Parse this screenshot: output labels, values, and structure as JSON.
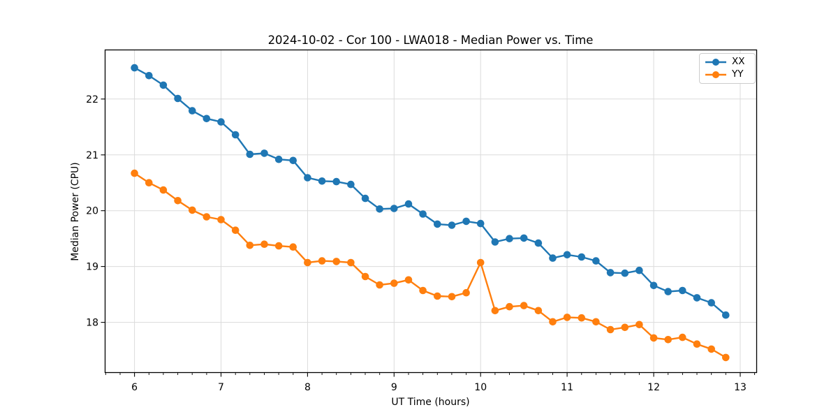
{
  "chart_data": {
    "type": "line",
    "title": "2024-10-02 - Cor 100 - LWA018 - Median Power vs. Time",
    "xlabel": "UT Time (hours)",
    "ylabel": "Median Power (CPU)",
    "x_ticks": [
      6,
      7,
      8,
      9,
      10,
      11,
      12,
      13
    ],
    "y_ticks": [
      18,
      19,
      20,
      21,
      22
    ],
    "xlim": [
      5.66,
      13.19
    ],
    "ylim": [
      17.1,
      22.88
    ],
    "x_minor_step": 0.1667,
    "grid": true,
    "legend_position": "upper right",
    "x": [
      6.0,
      6.167,
      6.333,
      6.5,
      6.667,
      6.833,
      7.0,
      7.167,
      7.333,
      7.5,
      7.667,
      7.833,
      8.0,
      8.167,
      8.333,
      8.5,
      8.667,
      8.833,
      9.0,
      9.167,
      9.333,
      9.5,
      9.667,
      9.833,
      10.0,
      10.167,
      10.333,
      10.5,
      10.667,
      10.833,
      11.0,
      11.167,
      11.333,
      11.5,
      11.667,
      11.833,
      12.0,
      12.167,
      12.333,
      12.5,
      12.667,
      12.833
    ],
    "series": [
      {
        "name": "XX",
        "color": "#1f77b4",
        "marker": "circle",
        "values": [
          22.56,
          22.42,
          22.25,
          22.01,
          21.79,
          21.65,
          21.59,
          21.36,
          21.01,
          21.03,
          20.92,
          20.9,
          20.59,
          20.53,
          20.52,
          20.47,
          20.22,
          20.03,
          20.04,
          20.12,
          19.94,
          19.76,
          19.74,
          19.81,
          19.77,
          19.44,
          19.5,
          19.51,
          19.42,
          19.15,
          19.21,
          19.17,
          19.1,
          18.89,
          18.88,
          18.93,
          18.66,
          18.55,
          18.57,
          18.44,
          18.35,
          18.13
        ]
      },
      {
        "name": "YY",
        "color": "#ff7f0e",
        "marker": "circle",
        "values": [
          20.67,
          20.5,
          20.37,
          20.18,
          20.01,
          19.89,
          19.84,
          19.65,
          19.38,
          19.4,
          19.37,
          19.35,
          19.07,
          19.1,
          19.09,
          19.07,
          18.82,
          18.67,
          18.7,
          18.76,
          18.57,
          18.47,
          18.46,
          18.53,
          19.07,
          18.21,
          18.28,
          18.3,
          18.21,
          18.01,
          18.09,
          18.08,
          18.01,
          17.87,
          17.91,
          17.96,
          17.72,
          17.69,
          17.73,
          17.61,
          17.52,
          17.37
        ]
      }
    ]
  }
}
